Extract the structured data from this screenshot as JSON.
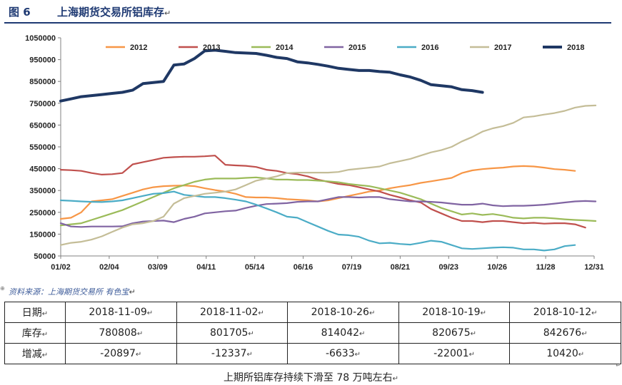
{
  "figure": {
    "label": "图 6",
    "title": "上海期货交易所铝库存",
    "source": "资料来源：上海期货交易所   有色宝",
    "caption": "上期所铝库存持续下滑至 78 万吨左右",
    "paragraph_mark": "↵"
  },
  "chart_data": {
    "type": "line",
    "x_ticks": [
      "01/02",
      "02/04",
      "03/09",
      "04/11",
      "05/14",
      "06/16",
      "07/19",
      "08/21",
      "09/23",
      "10/26",
      "11/28",
      "12/31"
    ],
    "y_ticks": [
      "50000",
      "150000",
      "250000",
      "350000",
      "450000",
      "550000",
      "650000",
      "750000",
      "850000",
      "950000",
      "1050000"
    ],
    "ylim": [
      50000,
      1050000
    ],
    "x_range_days": [
      0,
      363
    ],
    "legend_position": "top",
    "series": [
      {
        "name": "2012",
        "color": "#f79646",
        "x": [
          0,
          7,
          14,
          21,
          28,
          35,
          42,
          49,
          56,
          63,
          70,
          77,
          84,
          91,
          98,
          105,
          112,
          119,
          126,
          133,
          140,
          147,
          154,
          161,
          168,
          175,
          182,
          189,
          196,
          203,
          210,
          217,
          224,
          231,
          238,
          245,
          252,
          259,
          266,
          273,
          280,
          287,
          294,
          301,
          308,
          315,
          322,
          329,
          336,
          343,
          350
        ],
        "y": [
          220000,
          225000,
          250000,
          300000,
          305000,
          310000,
          325000,
          340000,
          355000,
          365000,
          370000,
          372000,
          373000,
          370000,
          360000,
          352000,
          345000,
          335000,
          320000,
          318000,
          318000,
          315000,
          310000,
          308000,
          305000,
          300000,
          305000,
          315000,
          325000,
          335000,
          345000,
          350000,
          360000,
          368000,
          375000,
          385000,
          392000,
          400000,
          408000,
          430000,
          442000,
          448000,
          452000,
          455000,
          460000,
          462000,
          460000,
          455000,
          448000,
          445000,
          440000
        ]
      },
      {
        "name": "2013",
        "color": "#c0504d",
        "x": [
          0,
          7,
          14,
          21,
          28,
          35,
          42,
          49,
          56,
          63,
          70,
          77,
          84,
          91,
          98,
          105,
          112,
          119,
          126,
          133,
          140,
          147,
          154,
          161,
          168,
          175,
          182,
          189,
          196,
          203,
          210,
          217,
          224,
          231,
          238,
          245,
          252,
          259,
          266,
          273,
          280,
          287,
          294,
          301,
          308,
          315,
          322,
          329,
          336,
          343,
          350,
          357
        ],
        "y": [
          445000,
          443000,
          440000,
          430000,
          423000,
          425000,
          430000,
          470000,
          480000,
          490000,
          500000,
          503000,
          505000,
          505000,
          507000,
          510000,
          468000,
          465000,
          463000,
          458000,
          445000,
          440000,
          430000,
          425000,
          415000,
          400000,
          390000,
          380000,
          375000,
          365000,
          355000,
          345000,
          330000,
          318000,
          305000,
          295000,
          265000,
          245000,
          225000,
          210000,
          210000,
          205000,
          210000,
          210000,
          205000,
          200000,
          202000,
          198000,
          200000,
          200000,
          195000,
          180000
        ]
      },
      {
        "name": "2014",
        "color": "#9bbb59",
        "x": [
          0,
          7,
          14,
          21,
          28,
          35,
          42,
          49,
          56,
          63,
          70,
          77,
          84,
          91,
          98,
          105,
          112,
          119,
          126,
          133,
          140,
          147,
          154,
          161,
          168,
          175,
          182,
          189,
          196,
          203,
          210,
          217,
          224,
          231,
          238,
          245,
          252,
          259,
          266,
          273,
          280,
          287,
          294,
          301,
          308,
          315,
          322,
          329,
          336,
          343,
          350,
          357,
          364
        ],
        "y": [
          190000,
          195000,
          200000,
          215000,
          230000,
          245000,
          260000,
          280000,
          300000,
          320000,
          340000,
          360000,
          375000,
          390000,
          400000,
          405000,
          405000,
          405000,
          408000,
          410000,
          405000,
          400000,
          400000,
          398000,
          398000,
          395000,
          392000,
          388000,
          380000,
          375000,
          370000,
          360000,
          350000,
          340000,
          325000,
          310000,
          290000,
          270000,
          255000,
          240000,
          245000,
          238000,
          242000,
          235000,
          225000,
          222000,
          225000,
          225000,
          222000,
          218000,
          215000,
          213000,
          210000
        ]
      },
      {
        "name": "2015",
        "color": "#8064a2",
        "x": [
          0,
          7,
          14,
          21,
          28,
          35,
          42,
          49,
          56,
          63,
          70,
          77,
          84,
          91,
          98,
          105,
          112,
          119,
          126,
          133,
          140,
          147,
          154,
          161,
          168,
          175,
          182,
          189,
          196,
          203,
          210,
          217,
          224,
          231,
          238,
          245,
          252,
          259,
          266,
          273,
          280,
          287,
          294,
          301,
          308,
          315,
          322,
          329,
          336,
          343,
          350,
          357,
          364
        ],
        "y": [
          200000,
          185000,
          183000,
          185000,
          185000,
          185000,
          186000,
          200000,
          208000,
          210000,
          212000,
          205000,
          220000,
          230000,
          245000,
          250000,
          255000,
          258000,
          270000,
          280000,
          288000,
          290000,
          292000,
          298000,
          300000,
          300000,
          310000,
          320000,
          320000,
          318000,
          320000,
          320000,
          310000,
          305000,
          300000,
          300000,
          298000,
          295000,
          290000,
          285000,
          285000,
          290000,
          282000,
          278000,
          280000,
          280000,
          282000,
          285000,
          290000,
          295000,
          300000,
          302000,
          300000
        ]
      },
      {
        "name": "2016",
        "color": "#4bacc6",
        "x": [
          0,
          7,
          14,
          21,
          28,
          35,
          42,
          49,
          56,
          63,
          70,
          77,
          84,
          91,
          98,
          105,
          112,
          119,
          126,
          133,
          140,
          147,
          154,
          161,
          168,
          175,
          182,
          189,
          196,
          203,
          210,
          217,
          224,
          231,
          238,
          245,
          252,
          259,
          266,
          273,
          280,
          287,
          294,
          301,
          308,
          315,
          322,
          329,
          336,
          343,
          350
        ],
        "y": [
          305000,
          303000,
          300000,
          298000,
          297000,
          300000,
          305000,
          315000,
          325000,
          335000,
          338000,
          345000,
          330000,
          325000,
          320000,
          320000,
          315000,
          308000,
          300000,
          285000,
          268000,
          250000,
          230000,
          225000,
          205000,
          185000,
          165000,
          148000,
          145000,
          138000,
          120000,
          108000,
          110000,
          105000,
          102000,
          110000,
          120000,
          115000,
          100000,
          85000,
          82000,
          85000,
          88000,
          90000,
          88000,
          80000,
          80000,
          75000,
          80000,
          95000,
          100000
        ]
      },
      {
        "name": "2017",
        "color": "#c4bd97",
        "x": [
          0,
          7,
          14,
          21,
          28,
          35,
          42,
          49,
          56,
          63,
          70,
          77,
          84,
          91,
          98,
          105,
          112,
          119,
          126,
          133,
          140,
          147,
          154,
          161,
          168,
          175,
          182,
          189,
          196,
          203,
          210,
          217,
          224,
          231,
          238,
          245,
          252,
          259,
          266,
          273,
          280,
          287,
          294,
          301,
          308,
          315,
          322,
          329,
          336,
          343,
          350,
          357,
          364
        ],
        "y": [
          100000,
          110000,
          115000,
          125000,
          140000,
          160000,
          180000,
          195000,
          200000,
          210000,
          230000,
          290000,
          315000,
          325000,
          335000,
          340000,
          345000,
          355000,
          375000,
          395000,
          405000,
          415000,
          430000,
          432000,
          432000,
          432000,
          432000,
          435000,
          445000,
          450000,
          455000,
          460000,
          475000,
          485000,
          495000,
          510000,
          525000,
          535000,
          550000,
          575000,
          595000,
          620000,
          635000,
          645000,
          660000,
          685000,
          690000,
          698000,
          705000,
          715000,
          730000,
          738000,
          740000
        ]
      },
      {
        "name": "2018",
        "color": "#1f3864",
        "x": [
          0,
          7,
          14,
          21,
          28,
          35,
          42,
          49,
          56,
          63,
          70,
          77,
          84,
          91,
          98,
          105,
          112,
          119,
          126,
          133,
          140,
          147,
          154,
          161,
          168,
          175,
          182,
          189,
          196,
          203,
          210,
          217,
          224,
          231,
          238,
          245,
          252,
          259,
          266,
          273,
          280,
          287
        ],
        "y": [
          760000,
          770000,
          780000,
          785000,
          790000,
          795000,
          800000,
          810000,
          840000,
          845000,
          850000,
          925000,
          930000,
          955000,
          990000,
          993000,
          988000,
          982000,
          980000,
          978000,
          970000,
          960000,
          955000,
          940000,
          935000,
          928000,
          920000,
          910000,
          905000,
          900000,
          900000,
          895000,
          892000,
          880000,
          870000,
          855000,
          835000,
          830000,
          825000,
          812000,
          808000,
          800000
        ]
      }
    ]
  },
  "table": {
    "rows": [
      {
        "header": "日期",
        "values": [
          "2018-11-09",
          "2018-11-02",
          "2018-10-26",
          "2018-10-19",
          "2018-10-12"
        ]
      },
      {
        "header": "库存",
        "values": [
          "780808",
          "801705",
          "814042",
          "820675",
          "842676"
        ]
      },
      {
        "header": "增减",
        "values": [
          "-20897",
          "-12337",
          "-6633",
          "-22001",
          "10420"
        ]
      }
    ]
  }
}
